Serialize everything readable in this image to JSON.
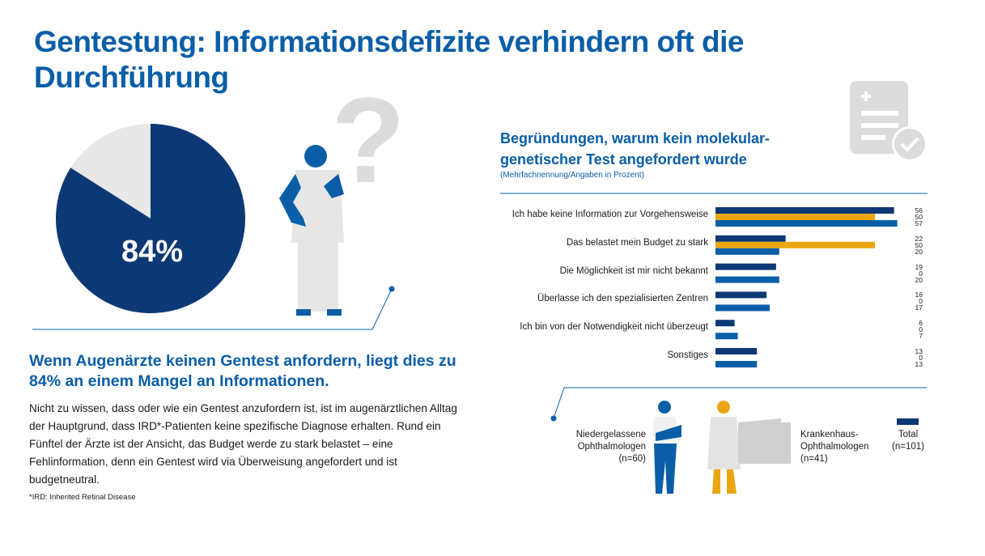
{
  "title": "Gentestung: Informationsdefizite verhindern oft die Durchführung",
  "pie": {
    "value_label": "84%",
    "value": 84,
    "colors": {
      "main": "#0d3876",
      "rest": "#e8e8e8"
    }
  },
  "lead": "Wenn Augenärzte keinen Gentest anfordern, liegt dies zu 84% an einem Mangel an Informationen.",
  "body": "Nicht zu wissen, dass oder wie ein Gentest anzufordern ist, ist im augenärztlichen Alltag der Hauptgrund, dass IRD*-Patienten keine spezifische Diagnose erhalten. Rund ein Fünftel der Ärzte ist der Ansicht, das Budget werde zu stark belastet – eine Fehlinformation, denn ein Gentest wird via Überweisung angefordert und ist budgetneutral.",
  "footnote": "*IRD: Inherited Retinal Disease",
  "chart_data": {
    "type": "bar",
    "orientation": "horizontal",
    "title": "Begründungen, warum kein molekular-genetischer Test angefordert wurde",
    "subtitle": "(Mehrfachnennung/Angaben in Prozent)",
    "categories": [
      "Ich habe keine Information zur Vorgehensweise",
      "Das belastet mein Budget zu stark",
      "Die Möglichkeit ist mir nicht bekannt",
      "Überlasse ich den spezialisierten Zentren",
      "Ich bin von der Notwendigkeit nicht überzeugt",
      "Sonstiges"
    ],
    "series": [
      {
        "name": "Total (n=101)",
        "color": "#0d3876",
        "values": [
          56,
          22,
          19,
          16,
          6,
          13
        ]
      },
      {
        "name": "Krankenhaus-Ophthalmologen (n=41)",
        "color": "#eaa611",
        "values": [
          50,
          50,
          0,
          0,
          0,
          0
        ]
      },
      {
        "name": "Niedergelassene Ophthalmologen (n=60)",
        "color": "#0a5ea8",
        "values": [
          57,
          20,
          20,
          17,
          7,
          13
        ]
      }
    ]
  },
  "legend": {
    "niedergelassen": "Niedergelassene Ophthalmologen (n=60)",
    "krankenhaus": "Krankenhaus-Ophthalmologen (n=41)",
    "total": "Total",
    "total_n": "(n=101)"
  }
}
